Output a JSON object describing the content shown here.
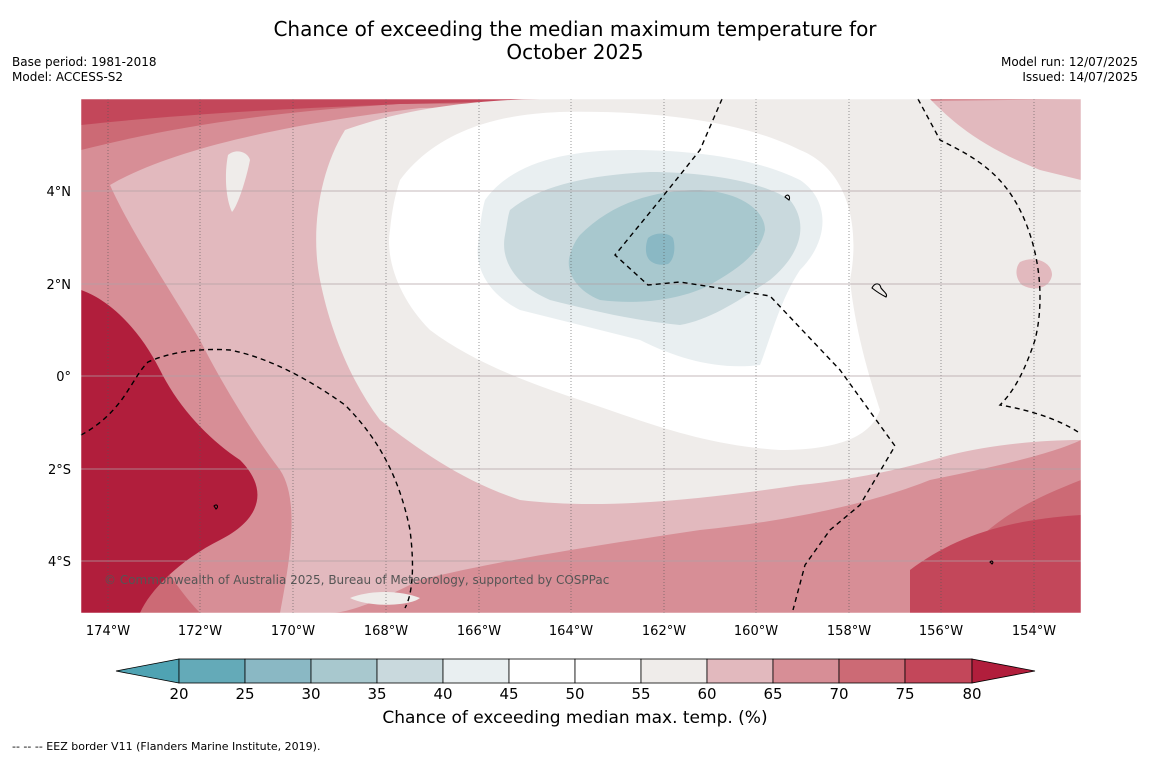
{
  "header": {
    "title_line1": "Chance of exceeding the median maximum temperature for",
    "title_line2": "October 2025",
    "base_period": "Base period: 1981-2018",
    "model": "Model: ACCESS-S2",
    "model_run": "Model run: 12/07/2025",
    "issued": "Issued: 14/07/2025"
  },
  "map": {
    "lon_ticks": [
      "174°W",
      "172°W",
      "170°W",
      "168°W",
      "166°W",
      "164°W",
      "162°W",
      "160°W",
      "158°W",
      "156°W",
      "154°W"
    ],
    "lat_ticks": [
      "4°N",
      "2°N",
      "0°",
      "2°S",
      "4°S"
    ],
    "copyright": "© Commonwealth of Australia 2025, Bureau of Meteorology, supported by COSPPac",
    "colors": {
      "c20": "#64aab8",
      "c25": "#8ab8c4",
      "c30": "#a8c8ce",
      "c35": "#c9d9dd",
      "c40": "#e9eff1",
      "c45": "#ffffff",
      "c50": "#ffffff",
      "c55": "#efecea",
      "c60": "#e2b9be",
      "c65": "#d78e96",
      "c70": "#cc6a75",
      "c75": "#c3475a",
      "c80": "#b11e3c"
    }
  },
  "colorbar": {
    "ticks": [
      "20",
      "25",
      "30",
      "35",
      "40",
      "45",
      "50",
      "55",
      "60",
      "65",
      "70",
      "75",
      "80"
    ],
    "label": "Chance of exceeding median max. temp. (%)"
  },
  "footnote": "--  --  -- EEZ border V11 (Flanders Marine Institute, 2019)."
}
